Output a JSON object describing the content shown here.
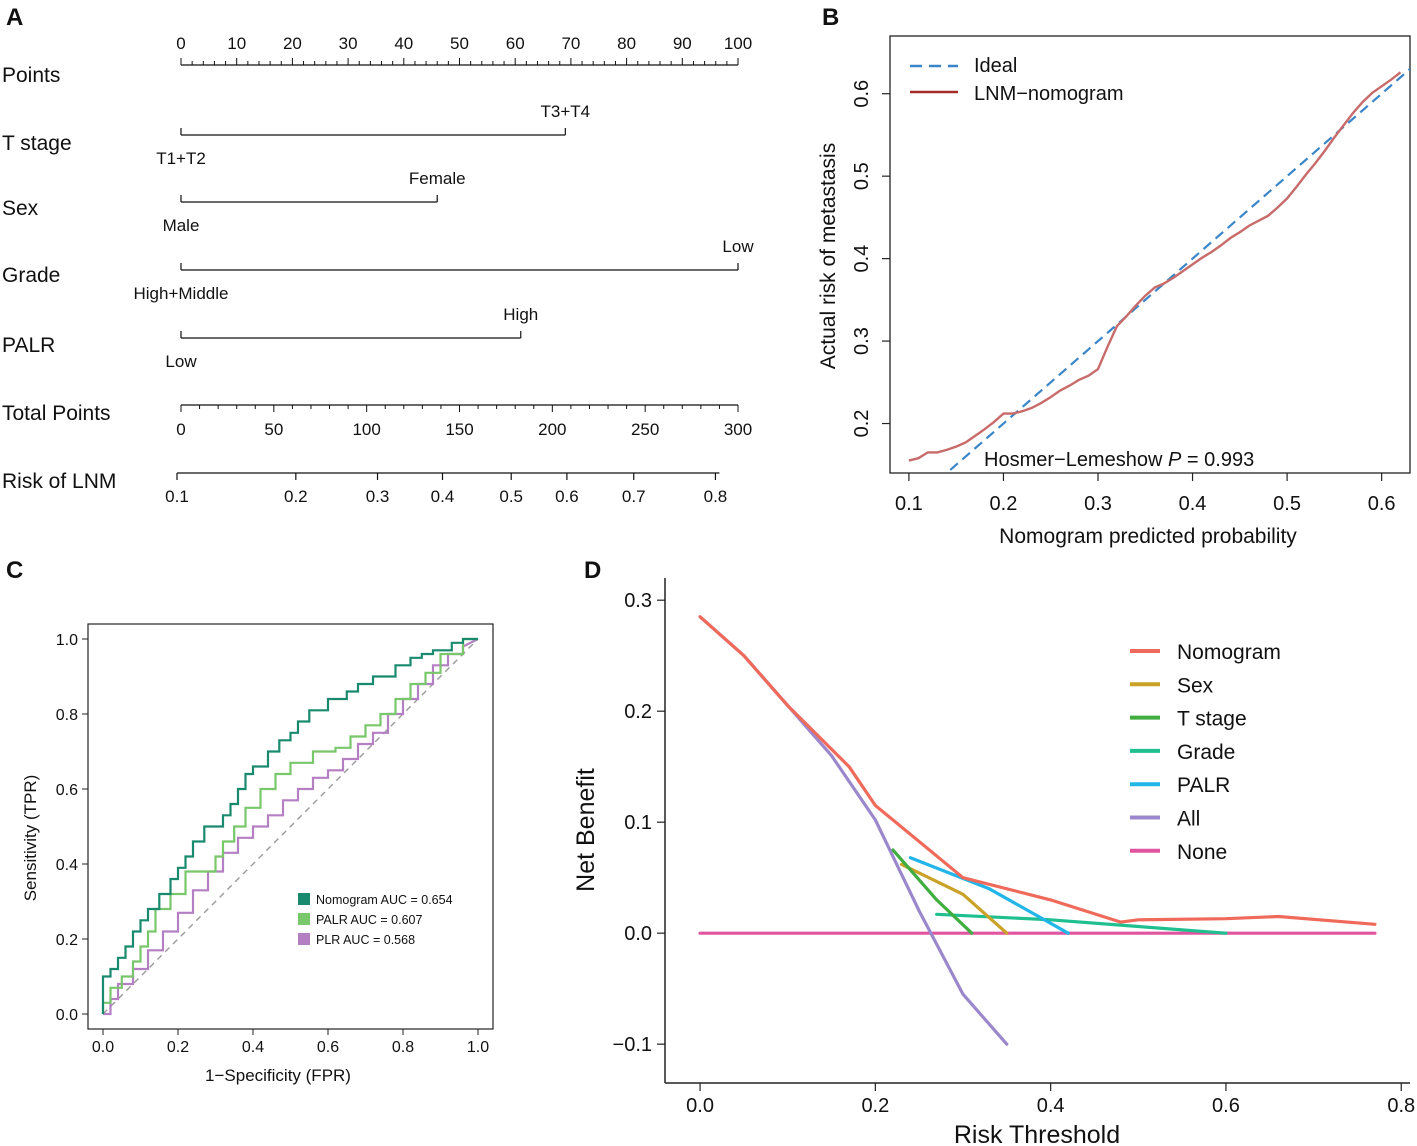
{
  "figure": {
    "panel_labels": [
      "A",
      "B",
      "C",
      "D"
    ]
  },
  "chart_data": [
    {
      "panel": "A",
      "type": "nomogram",
      "points_axis": {
        "label": "Points",
        "min": 0,
        "max": 100,
        "ticks": [
          0,
          10,
          20,
          30,
          40,
          50,
          60,
          70,
          80,
          90,
          100
        ]
      },
      "variables": [
        {
          "label": "T stage",
          "low_level": "T1+T2",
          "high_level": "T3+T4",
          "points_max": 69
        },
        {
          "label": "Sex",
          "low_level": "Male",
          "high_level": "Female",
          "points_max": 46
        },
        {
          "label": "Grade",
          "low_level": "High+Middle",
          "high_level": "Low",
          "points_max": 100
        },
        {
          "label": "PALR",
          "low_level": "Low",
          "high_level": "High",
          "points_max": 61
        }
      ],
      "total_points_axis": {
        "label": "Total Points",
        "min": 0,
        "max": 300,
        "ticks": [
          0,
          50,
          100,
          150,
          200,
          250,
          300
        ]
      },
      "risk_axis": {
        "label": "Risk of LNM",
        "ticks": [
          "0.1",
          "0.2",
          "0.3",
          "0.4",
          "0.5",
          "0.6",
          "0.7",
          "0.8"
        ],
        "total_points_at_ticks": [
          0,
          64,
          108,
          143,
          180,
          210,
          246,
          290
        ]
      }
    },
    {
      "panel": "B",
      "type": "line",
      "title": "",
      "xlabel": "Nomogram predicted probability",
      "ylabel": "Actual risk of metastasis",
      "xlim": [
        0.08,
        0.63
      ],
      "ylim": [
        0.14,
        0.67
      ],
      "xticks": [
        "0.1",
        "0.2",
        "0.3",
        "0.4",
        "0.5",
        "0.6"
      ],
      "yticks": [
        "0.2",
        "0.3",
        "0.4",
        "0.5",
        "0.6"
      ],
      "annotation": {
        "prefix": "Hosmer−Lemeshow",
        "p": "P",
        "eq": "=",
        "value": "0.993"
      },
      "legend": [
        {
          "name": "Ideal",
          "color": "#3a86c8",
          "dashed": true
        },
        {
          "name": "LNM−nomogram",
          "color": "#a52a2a",
          "dashed": false
        }
      ],
      "series": [
        {
          "name": "Ideal",
          "x": [
            0.08,
            0.63
          ],
          "y": [
            0.08,
            0.63
          ]
        },
        {
          "name": "LNM−nomogram",
          "x": [
            0.1,
            0.11,
            0.12,
            0.13,
            0.14,
            0.15,
            0.16,
            0.17,
            0.18,
            0.19,
            0.2,
            0.21,
            0.22,
            0.23,
            0.24,
            0.25,
            0.26,
            0.27,
            0.28,
            0.29,
            0.3,
            0.31,
            0.32,
            0.33,
            0.34,
            0.35,
            0.36,
            0.37,
            0.38,
            0.39,
            0.4,
            0.41,
            0.42,
            0.43,
            0.44,
            0.45,
            0.46,
            0.47,
            0.48,
            0.49,
            0.5,
            0.51,
            0.52,
            0.53,
            0.54,
            0.55,
            0.56,
            0.57,
            0.58,
            0.59,
            0.6,
            0.61,
            0.62
          ],
          "y": [
            0.155,
            0.158,
            0.165,
            0.165,
            0.168,
            0.172,
            0.177,
            0.185,
            0.193,
            0.202,
            0.212,
            0.212,
            0.215,
            0.219,
            0.225,
            0.232,
            0.24,
            0.246,
            0.253,
            0.258,
            0.266,
            0.293,
            0.318,
            0.33,
            0.343,
            0.355,
            0.365,
            0.37,
            0.377,
            0.385,
            0.393,
            0.401,
            0.408,
            0.416,
            0.425,
            0.432,
            0.44,
            0.446,
            0.452,
            0.462,
            0.473,
            0.487,
            0.502,
            0.516,
            0.531,
            0.547,
            0.562,
            0.577,
            0.59,
            0.601,
            0.609,
            0.617,
            0.626
          ]
        }
      ]
    },
    {
      "panel": "C",
      "type": "line",
      "title": "",
      "xlabel": "1−Specificity (FPR)",
      "ylabel": "Sensitivity (TPR)",
      "xlim": [
        -0.04,
        1.04
      ],
      "ylim": [
        -0.04,
        1.04
      ],
      "xticks": [
        "0.0",
        "0.2",
        "0.4",
        "0.6",
        "0.8",
        "1.0"
      ],
      "yticks": [
        "0.0",
        "0.2",
        "0.4",
        "0.6",
        "0.8",
        "1.0"
      ],
      "legend": [
        {
          "name": "Nomogram AUC = 0.654",
          "color": "#1a8a6e"
        },
        {
          "name": "PALR AUC = 0.607",
          "color": "#78c76b"
        },
        {
          "name": "PLR AUC = 0.568",
          "color": "#b57fc4"
        }
      ],
      "series": [
        {
          "name": "Nomogram",
          "x": [
            0,
            0,
            0.02,
            0.02,
            0.04,
            0.04,
            0.06,
            0.06,
            0.08,
            0.08,
            0.1,
            0.1,
            0.12,
            0.12,
            0.15,
            0.15,
            0.18,
            0.18,
            0.2,
            0.2,
            0.22,
            0.22,
            0.24,
            0.24,
            0.27,
            0.27,
            0.32,
            0.32,
            0.34,
            0.34,
            0.36,
            0.36,
            0.38,
            0.38,
            0.4,
            0.4,
            0.44,
            0.44,
            0.47,
            0.47,
            0.5,
            0.5,
            0.52,
            0.52,
            0.55,
            0.55,
            0.6,
            0.6,
            0.65,
            0.65,
            0.68,
            0.68,
            0.72,
            0.72,
            0.78,
            0.78,
            0.82,
            0.82,
            0.85,
            0.85,
            0.88,
            0.88,
            0.93,
            0.93,
            0.96,
            0.96,
            1.0
          ],
          "y": [
            0,
            0.1,
            0.1,
            0.12,
            0.12,
            0.15,
            0.15,
            0.18,
            0.18,
            0.22,
            0.22,
            0.25,
            0.25,
            0.28,
            0.28,
            0.32,
            0.32,
            0.36,
            0.36,
            0.39,
            0.39,
            0.42,
            0.42,
            0.46,
            0.46,
            0.5,
            0.5,
            0.53,
            0.53,
            0.56,
            0.56,
            0.6,
            0.6,
            0.64,
            0.64,
            0.66,
            0.66,
            0.7,
            0.7,
            0.73,
            0.73,
            0.75,
            0.75,
            0.78,
            0.78,
            0.81,
            0.81,
            0.84,
            0.84,
            0.86,
            0.86,
            0.88,
            0.88,
            0.9,
            0.9,
            0.93,
            0.93,
            0.95,
            0.95,
            0.96,
            0.96,
            0.97,
            0.97,
            0.99,
            0.99,
            1.0,
            1.0
          ]
        },
        {
          "name": "PALR",
          "x": [
            0,
            0,
            0.02,
            0.02,
            0.05,
            0.05,
            0.08,
            0.08,
            0.1,
            0.1,
            0.12,
            0.12,
            0.14,
            0.14,
            0.18,
            0.18,
            0.22,
            0.22,
            0.3,
            0.3,
            0.32,
            0.32,
            0.35,
            0.35,
            0.38,
            0.38,
            0.42,
            0.42,
            0.46,
            0.46,
            0.5,
            0.5,
            0.56,
            0.56,
            0.62,
            0.62,
            0.66,
            0.66,
            0.7,
            0.7,
            0.74,
            0.74,
            0.78,
            0.78,
            0.82,
            0.82,
            0.86,
            0.86,
            0.9,
            0.9,
            0.96,
            0.96,
            1.0
          ],
          "y": [
            0,
            0.03,
            0.03,
            0.07,
            0.07,
            0.1,
            0.1,
            0.14,
            0.14,
            0.18,
            0.18,
            0.22,
            0.22,
            0.28,
            0.28,
            0.32,
            0.32,
            0.38,
            0.38,
            0.42,
            0.42,
            0.46,
            0.46,
            0.5,
            0.5,
            0.55,
            0.55,
            0.6,
            0.6,
            0.64,
            0.64,
            0.67,
            0.67,
            0.7,
            0.7,
            0.71,
            0.71,
            0.74,
            0.74,
            0.77,
            0.77,
            0.8,
            0.8,
            0.84,
            0.84,
            0.88,
            0.88,
            0.91,
            0.91,
            0.96,
            0.96,
            1.0,
            1.0
          ]
        },
        {
          "name": "PLR",
          "x": [
            0,
            0.02,
            0.02,
            0.04,
            0.04,
            0.08,
            0.08,
            0.12,
            0.12,
            0.16,
            0.16,
            0.2,
            0.2,
            0.24,
            0.24,
            0.28,
            0.28,
            0.32,
            0.32,
            0.36,
            0.36,
            0.4,
            0.4,
            0.44,
            0.44,
            0.48,
            0.48,
            0.52,
            0.52,
            0.56,
            0.56,
            0.6,
            0.6,
            0.64,
            0.64,
            0.68,
            0.68,
            0.72,
            0.72,
            0.76,
            0.76,
            0.8,
            0.8,
            0.84,
            0.84,
            0.88,
            0.88,
            0.92,
            0.92,
            0.96,
            0.96,
            1.0
          ],
          "y": [
            0,
            0,
            0.04,
            0.04,
            0.08,
            0.08,
            0.12,
            0.12,
            0.17,
            0.17,
            0.22,
            0.22,
            0.27,
            0.27,
            0.33,
            0.33,
            0.38,
            0.38,
            0.43,
            0.43,
            0.47,
            0.47,
            0.5,
            0.5,
            0.53,
            0.53,
            0.57,
            0.57,
            0.6,
            0.6,
            0.63,
            0.63,
            0.65,
            0.65,
            0.68,
            0.68,
            0.72,
            0.72,
            0.75,
            0.75,
            0.8,
            0.8,
            0.84,
            0.84,
            0.88,
            0.88,
            0.93,
            0.93,
            0.96,
            0.96,
            0.98,
            1.0
          ]
        }
      ]
    },
    {
      "panel": "D",
      "type": "line",
      "title": "",
      "xlabel": "Risk Threshold",
      "ylabel": "Net Benefit",
      "xlim": [
        -0.04,
        0.81
      ],
      "ylim": [
        -0.135,
        0.32
      ],
      "xticks": [
        "0.0",
        "0.2",
        "0.4",
        "0.6",
        "0.8"
      ],
      "yticks": [
        "−0.1",
        "0.0",
        "0.1",
        "0.2",
        "0.3"
      ],
      "legend": [
        {
          "name": "Nomogram",
          "color": "#ef6a5a"
        },
        {
          "name": "Sex",
          "color": "#c9a227"
        },
        {
          "name": "T stage",
          "color": "#3fae3f"
        },
        {
          "name": "Grade",
          "color": "#1fbf8f"
        },
        {
          "name": "PALR",
          "color": "#22b5e8"
        },
        {
          "name": "All",
          "color": "#9b88cc"
        },
        {
          "name": "None",
          "color": "#e0559f"
        }
      ],
      "series": [
        {
          "name": "Nomogram",
          "x": [
            0.0,
            0.05,
            0.1,
            0.17,
            0.2,
            0.3,
            0.36,
            0.4,
            0.48,
            0.5,
            0.6,
            0.66,
            0.77
          ],
          "y": [
            0.285,
            0.25,
            0.205,
            0.15,
            0.115,
            0.05,
            0.038,
            0.03,
            0.01,
            0.012,
            0.013,
            0.015,
            0.008
          ]
        },
        {
          "name": "Sex",
          "x": [
            0.23,
            0.3,
            0.35
          ],
          "y": [
            0.062,
            0.035,
            0.0
          ]
        },
        {
          "name": "T stage",
          "x": [
            0.22,
            0.27,
            0.31
          ],
          "y": [
            0.075,
            0.03,
            0.0
          ]
        },
        {
          "name": "Grade",
          "x": [
            0.27,
            0.4,
            0.5,
            0.6
          ],
          "y": [
            0.017,
            0.012,
            0.006,
            0.0
          ]
        },
        {
          "name": "PALR",
          "x": [
            0.24,
            0.33,
            0.42
          ],
          "y": [
            0.068,
            0.04,
            0.0
          ]
        },
        {
          "name": "All",
          "x": [
            0.0,
            0.05,
            0.1,
            0.15,
            0.2,
            0.25,
            0.3,
            0.35
          ],
          "y": [
            0.285,
            0.25,
            0.205,
            0.16,
            0.102,
            0.02,
            -0.055,
            -0.1
          ]
        },
        {
          "name": "None",
          "x": [
            0.0,
            0.77
          ],
          "y": [
            0.0,
            0.0
          ]
        }
      ]
    }
  ]
}
